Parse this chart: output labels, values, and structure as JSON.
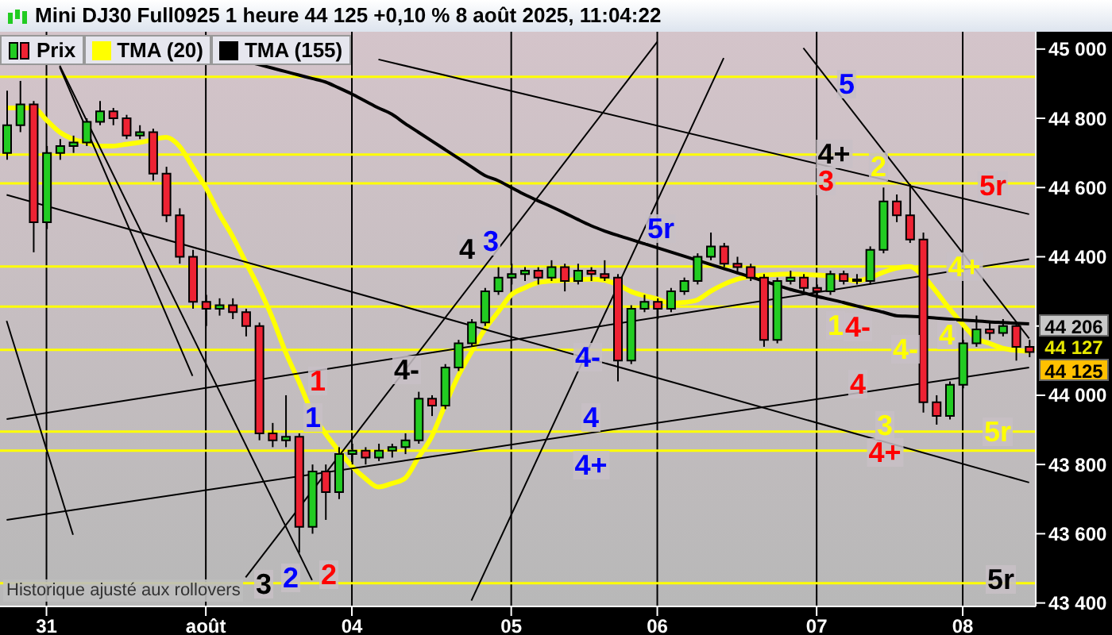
{
  "chart_data": {
    "type": "candlestick",
    "title": "Mini DJ30 Full0925 1 heure 44 125 +0,10 % 8 août 2025, 11:04:22",
    "categories": [
      null,
      null,
      null,
      "31",
      null,
      null,
      null,
      null,
      null,
      null,
      null,
      null,
      null,
      null,
      null,
      "août",
      null,
      null,
      null,
      null,
      null,
      null,
      null,
      null,
      null,
      null,
      "04",
      null,
      null,
      null,
      null,
      null,
      null,
      null,
      null,
      null,
      null,
      null,
      "05",
      null,
      null,
      null,
      null,
      null,
      null,
      null,
      null,
      null,
      null,
      "06",
      null,
      null,
      null,
      null,
      null,
      null,
      null,
      null,
      null,
      null,
      null,
      "07",
      null,
      null,
      null,
      null,
      null,
      null,
      null,
      null,
      null,
      null,
      "08",
      null,
      null,
      null,
      null,
      null
    ],
    "ylim": [
      43390,
      45050
    ],
    "yticks": [
      {
        "value": 43400,
        "label": "43 400"
      },
      {
        "value": 43600,
        "label": "43 600"
      },
      {
        "value": 43800,
        "label": "43 800"
      },
      {
        "value": 44000,
        "label": "44 000"
      },
      {
        "value": 44200,
        "label": null
      },
      {
        "value": 44400,
        "label": "44 400"
      },
      {
        "value": 44600,
        "label": "44 600"
      },
      {
        "value": 44800,
        "label": "44 800"
      },
      {
        "value": 45000,
        "label": "45 000"
      }
    ],
    "grid": "x",
    "legend": "top left",
    "series": [
      {
        "name": "Prix",
        "ohlc": [
          [
            44700,
            44880,
            44680,
            44780
          ],
          [
            44780,
            44908,
            44760,
            44840
          ],
          [
            44840,
            44850,
            44413,
            44500
          ],
          [
            44500,
            44720,
            44480,
            44700
          ],
          [
            44700,
            44740,
            44680,
            44720
          ],
          [
            44720,
            44750,
            44700,
            44730
          ],
          [
            44730,
            44800,
            44720,
            44790
          ],
          [
            44790,
            44850,
            44780,
            44820
          ],
          [
            44820,
            44830,
            44780,
            44800
          ],
          [
            44800,
            44810,
            44740,
            44750
          ],
          [
            44750,
            44780,
            44740,
            44760
          ],
          [
            44760,
            44770,
            44620,
            44640
          ],
          [
            44640,
            44660,
            44500,
            44520
          ],
          [
            44520,
            44540,
            44380,
            44400
          ],
          [
            44400,
            44420,
            44250,
            44270
          ],
          [
            44270,
            44290,
            44200,
            44250
          ],
          [
            44250,
            44280,
            44230,
            44260
          ],
          [
            44260,
            44280,
            44220,
            44240
          ],
          [
            44240,
            44250,
            44170,
            44200
          ],
          [
            44200,
            44210,
            43870,
            43890
          ],
          [
            43890,
            43920,
            43850,
            43870
          ],
          [
            43870,
            44000,
            43850,
            43880
          ],
          [
            43880,
            43890,
            43545,
            43620
          ],
          [
            43620,
            43800,
            43600,
            43780
          ],
          [
            43780,
            43800,
            43640,
            43720
          ],
          [
            43720,
            43850,
            43700,
            43830
          ],
          [
            43830,
            43860,
            43800,
            43840
          ],
          [
            43840,
            43850,
            43800,
            43820
          ],
          [
            43820,
            43860,
            43810,
            43840
          ],
          [
            43840,
            43860,
            43820,
            43850
          ],
          [
            43850,
            43890,
            43830,
            43870
          ],
          [
            43870,
            44010,
            43860,
            43990
          ],
          [
            43990,
            44000,
            43940,
            43970
          ],
          [
            43970,
            44090,
            43960,
            44080
          ],
          [
            44080,
            44160,
            44070,
            44150
          ],
          [
            44150,
            44220,
            44140,
            44210
          ],
          [
            44210,
            44310,
            44200,
            44300
          ],
          [
            44300,
            44370,
            44290,
            44340
          ],
          [
            44340,
            44380,
            44320,
            44350
          ],
          [
            44350,
            44370,
            44330,
            44360
          ],
          [
            44360,
            44370,
            44320,
            44340
          ],
          [
            44340,
            44390,
            44330,
            44370
          ],
          [
            44370,
            44380,
            44300,
            44330
          ],
          [
            44330,
            44380,
            44320,
            44360
          ],
          [
            44360,
            44370,
            44330,
            44350
          ],
          [
            44350,
            44390,
            44330,
            44340
          ],
          [
            44340,
            44350,
            44040,
            44100
          ],
          [
            44100,
            44260,
            44090,
            44250
          ],
          [
            44250,
            44290,
            44240,
            44270
          ],
          [
            44270,
            44280,
            44220,
            44250
          ],
          [
            44250,
            44310,
            44240,
            44300
          ],
          [
            44300,
            44340,
            44290,
            44330
          ],
          [
            44330,
            44410,
            44320,
            44400
          ],
          [
            44400,
            44470,
            44390,
            44430
          ],
          [
            44430,
            44440,
            44370,
            44380
          ],
          [
            44380,
            44400,
            44350,
            44370
          ],
          [
            44370,
            44380,
            44330,
            44340
          ],
          [
            44340,
            44350,
            44140,
            44160
          ],
          [
            44160,
            44340,
            44150,
            44330
          ],
          [
            44330,
            44360,
            44320,
            44340
          ],
          [
            44340,
            44350,
            44300,
            44310
          ],
          [
            44310,
            44320,
            44280,
            44300
          ],
          [
            44300,
            44360,
            44290,
            44350
          ],
          [
            44350,
            44360,
            44320,
            44330
          ],
          [
            44330,
            44350,
            44320,
            44330
          ],
          [
            44330,
            44430,
            44320,
            44420
          ],
          [
            44420,
            44600,
            44410,
            44560
          ],
          [
            44560,
            44580,
            44500,
            44520
          ],
          [
            44520,
            44610,
            44440,
            44450
          ],
          [
            44450,
            44470,
            43950,
            43980
          ],
          [
            43980,
            44000,
            43915,
            43940
          ],
          [
            43940,
            44040,
            43930,
            44030
          ],
          [
            44030,
            44160,
            44020,
            44150
          ],
          [
            44150,
            44230,
            44140,
            44190
          ],
          [
            44190,
            44210,
            44160,
            44180
          ],
          [
            44180,
            44220,
            44170,
            44200
          ],
          [
            44200,
            44210,
            44100,
            44140
          ],
          [
            44140,
            44160,
            44110,
            44125
          ]
        ]
      },
      {
        "type": "line",
        "name": "TMA (20)",
        "color": "#ffff00",
        "values": [
          44830,
          44830,
          44830,
          44795,
          44760,
          44740,
          44730,
          44720,
          44720,
          44725,
          44730,
          44738,
          44745,
          44720,
          44660,
          44600,
          44525,
          44460,
          44385,
          44310,
          44225,
          44125,
          44040,
          43950,
          43890,
          43840,
          43795,
          43760,
          43735,
          43745,
          43760,
          43820,
          43880,
          43970,
          44055,
          44125,
          44190,
          44240,
          44290,
          44310,
          44325,
          44330,
          44332,
          44334,
          44335,
          44332,
          44320,
          44300,
          44288,
          44278,
          44266,
          44268,
          44275,
          44300,
          44320,
          44335,
          44343,
          44347,
          44349,
          44350,
          44349,
          44347,
          44345,
          44337,
          44330,
          44340,
          44355,
          44367,
          44372,
          44345,
          44300,
          44250,
          44205,
          44165,
          44150,
          44136,
          44130,
          44127
        ]
      },
      {
        "type": "line",
        "name": "TMA (155)",
        "color": "#000000",
        "values": [
          null,
          null,
          null,
          null,
          null,
          null,
          null,
          null,
          null,
          null,
          null,
          null,
          null,
          null,
          null,
          null,
          null,
          44975,
          44965,
          44955,
          44945,
          44935,
          44925,
          44915,
          44905,
          44888,
          44870,
          44850,
          44830,
          44812,
          44785,
          44760,
          44735,
          44710,
          44685,
          44660,
          44635,
          44620,
          44600,
          44580,
          44562,
          44545,
          44527,
          44508,
          44490,
          44475,
          44462,
          44450,
          44438,
          44426,
          44414,
          44402,
          44390,
          44378,
          44366,
          44354,
          44342,
          44330,
          44318,
          44306,
          44296,
          44286,
          44277,
          44268,
          44258,
          44249,
          44240,
          44230,
          44228,
          44226,
          44223,
          44220,
          44217,
          44215,
          44212,
          44210,
          44208,
          44206
        ]
      },
      {
        "type": "line",
        "color": "#000000",
        "values": [
          44215,
          null,
          null,
          null,
          null,
          43597,
          null,
          null,
          null,
          null,
          null,
          null,
          null,
          null,
          null,
          null,
          null,
          null,
          null,
          null,
          null,
          null,
          null,
          null,
          null,
          null,
          null,
          null,
          null,
          null,
          null,
          null,
          null,
          null,
          null,
          null,
          null,
          null,
          null,
          null,
          null,
          null,
          null,
          null,
          null,
          null,
          null,
          null,
          null,
          null,
          null,
          null,
          null,
          null,
          null,
          null,
          null,
          null,
          null,
          null,
          null,
          null,
          null,
          null,
          null,
          null,
          null,
          null,
          null,
          null,
          null,
          null,
          null,
          null,
          null,
          null,
          null,
          null
        ]
      },
      {
        "type": "line",
        "color": "#000000",
        "values": [
          null,
          null,
          null,
          null,
          44948,
          null,
          null,
          null,
          null,
          null,
          null,
          null,
          null,
          null,
          44056,
          null,
          null,
          null,
          null,
          null,
          null,
          null,
          null,
          null,
          null,
          null,
          null,
          null,
          null,
          null,
          null,
          null,
          null,
          null,
          null,
          null,
          null,
          null,
          null,
          null,
          null,
          null,
          null,
          null,
          null,
          null,
          null,
          null,
          null,
          null,
          null,
          null,
          null,
          null,
          null,
          null,
          null,
          null,
          null,
          null,
          null,
          null,
          null,
          null,
          null,
          null,
          null,
          null,
          null,
          null,
          null,
          null,
          null,
          null,
          null,
          null,
          null,
          null
        ]
      },
      {
        "type": "line",
        "color": "#000000",
        "values": [
          null,
          null,
          null,
          null,
          44952,
          null,
          null,
          null,
          null,
          null,
          null,
          null,
          null,
          null,
          null,
          null,
          null,
          null,
          null,
          null,
          null,
          null,
          null,
          43466,
          null,
          null,
          null,
          null,
          null,
          null,
          null,
          null,
          null,
          null,
          null,
          null,
          null,
          null,
          null,
          null,
          null,
          null,
          null,
          null,
          null,
          null,
          null,
          null,
          null,
          null,
          null,
          null,
          null,
          null,
          null,
          null,
          null,
          null,
          null,
          null,
          null,
          null,
          null,
          null,
          null,
          null,
          null,
          null,
          null,
          null,
          null,
          null,
          null,
          null,
          null,
          null,
          null,
          null
        ]
      },
      {
        "type": "line",
        "color": "#000000",
        "values": [
          44579,
          null,
          null,
          null,
          null,
          null,
          null,
          null,
          null,
          null,
          null,
          null,
          null,
          null,
          null,
          null,
          null,
          null,
          null,
          null,
          null,
          null,
          null,
          null,
          null,
          null,
          null,
          null,
          null,
          null,
          null,
          null,
          null,
          null,
          null,
          null,
          null,
          null,
          null,
          null,
          null,
          null,
          null,
          null,
          null,
          null,
          null,
          null,
          null,
          null,
          null,
          null,
          null,
          null,
          null,
          null,
          null,
          null,
          null,
          null,
          null,
          null,
          null,
          null,
          null,
          null,
          null,
          null,
          null,
          null,
          null,
          null,
          null,
          null,
          null,
          null,
          null,
          43748
        ]
      },
      {
        "type": "line",
        "color": "#000000",
        "values": [
          43931,
          null,
          null,
          null,
          null,
          null,
          null,
          null,
          null,
          null,
          null,
          null,
          null,
          null,
          null,
          null,
          null,
          null,
          null,
          null,
          null,
          null,
          null,
          null,
          null,
          null,
          null,
          null,
          null,
          null,
          null,
          null,
          null,
          null,
          null,
          null,
          null,
          null,
          null,
          null,
          null,
          null,
          null,
          null,
          null,
          null,
          null,
          null,
          null,
          null,
          null,
          null,
          null,
          null,
          null,
          null,
          null,
          null,
          null,
          null,
          null,
          null,
          null,
          null,
          null,
          null,
          null,
          null,
          null,
          null,
          null,
          null,
          null,
          null,
          null,
          null,
          null,
          44393
        ]
      },
      {
        "type": "line",
        "color": "#000000",
        "values": [
          43640,
          null,
          null,
          null,
          null,
          null,
          null,
          null,
          null,
          null,
          null,
          null,
          null,
          null,
          null,
          null,
          null,
          null,
          null,
          null,
          null,
          null,
          null,
          null,
          null,
          null,
          null,
          null,
          null,
          null,
          null,
          null,
          null,
          null,
          null,
          null,
          null,
          null,
          null,
          null,
          null,
          null,
          null,
          null,
          null,
          null,
          null,
          null,
          null,
          null,
          null,
          null,
          null,
          null,
          null,
          null,
          null,
          null,
          null,
          null,
          null,
          null,
          null,
          null,
          null,
          null,
          null,
          null,
          null,
          null,
          null,
          null,
          null,
          null,
          null,
          null,
          null,
          44080
        ]
      },
      {
        "type": "line",
        "color": "#000000",
        "values": [
          null,
          null,
          null,
          null,
          null,
          null,
          null,
          null,
          null,
          null,
          null,
          null,
          null,
          null,
          null,
          null,
          null,
          null,
          null,
          null,
          null,
          null,
          null,
          null,
          null,
          null,
          null,
          null,
          44970,
          null,
          null,
          null,
          null,
          null,
          null,
          null,
          null,
          null,
          null,
          null,
          null,
          null,
          null,
          null,
          null,
          null,
          null,
          null,
          null,
          null,
          null,
          null,
          null,
          null,
          null,
          null,
          null,
          null,
          null,
          null,
          null,
          null,
          null,
          null,
          null,
          null,
          null,
          null,
          null,
          null,
          null,
          null,
          null,
          null,
          null,
          null,
          null,
          44523
        ]
      },
      {
        "type": "line",
        "color": "#000000",
        "values": [
          null,
          null,
          null,
          null,
          null,
          null,
          null,
          null,
          null,
          null,
          null,
          null,
          null,
          null,
          null,
          null,
          null,
          null,
          null,
          null,
          null,
          null,
          null,
          null,
          null,
          null,
          null,
          null,
          null,
          null,
          null,
          null,
          null,
          null,
          null,
          43407,
          null,
          null,
          null,
          null,
          null,
          null,
          null,
          null,
          null,
          null,
          null,
          null,
          null,
          null,
          null,
          null,
          null,
          null,
          44974,
          null,
          null,
          null,
          null,
          null,
          null,
          null,
          null,
          null,
          null,
          null,
          null,
          null,
          null,
          null,
          null,
          null,
          null,
          null,
          null,
          null,
          null,
          null
        ]
      },
      {
        "type": "line",
        "color": "#000000",
        "values": [
          null,
          null,
          null,
          null,
          null,
          null,
          null,
          null,
          null,
          null,
          null,
          null,
          null,
          null,
          null,
          null,
          null,
          null,
          43474,
          null,
          null,
          null,
          null,
          null,
          null,
          null,
          null,
          null,
          null,
          null,
          null,
          null,
          null,
          null,
          null,
          null,
          null,
          null,
          null,
          null,
          null,
          null,
          null,
          null,
          null,
          null,
          null,
          null,
          null,
          45021,
          null,
          null,
          null,
          null,
          null,
          null,
          null,
          null,
          null,
          null,
          null,
          null,
          null,
          null,
          null,
          null,
          null,
          null,
          null,
          null,
          null,
          null,
          null,
          null,
          null,
          null,
          null,
          null
        ]
      },
      {
        "type": "line",
        "color": "#000000",
        "values": [
          null,
          null,
          null,
          null,
          null,
          null,
          null,
          null,
          null,
          null,
          null,
          null,
          null,
          null,
          null,
          null,
          null,
          null,
          null,
          null,
          null,
          null,
          null,
          null,
          null,
          null,
          null,
          null,
          null,
          null,
          null,
          null,
          null,
          null,
          null,
          null,
          null,
          null,
          null,
          null,
          null,
          null,
          null,
          null,
          null,
          null,
          null,
          null,
          null,
          null,
          null,
          null,
          null,
          null,
          null,
          null,
          null,
          null,
          null,
          null,
          45003,
          null,
          null,
          null,
          null,
          null,
          null,
          null,
          null,
          null,
          null,
          null,
          null,
          null,
          null,
          null,
          null,
          44164
        ]
      }
    ],
    "ref_lines": [
      {
        "axis": "y",
        "value": 44920,
        "color": "#ffff00"
      },
      {
        "axis": "y",
        "value": 44695,
        "color": "#ffff00"
      },
      {
        "axis": "y",
        "value": 44612,
        "color": "#ffff00"
      },
      {
        "axis": "y",
        "value": 44372,
        "color": "#ffff00"
      },
      {
        "axis": "y",
        "value": 44256,
        "color": "#ffff00"
      },
      {
        "axis": "y",
        "value": 44131,
        "color": "#ffff00"
      },
      {
        "axis": "y",
        "value": 43895,
        "color": "#ffff00"
      },
      {
        "axis": "y",
        "value": 43840,
        "color": "#ffff00"
      },
      {
        "axis": "y",
        "value": 43457,
        "color": "#ffff00"
      }
    ],
    "annotations": [
      "Historique ajusté aux rollovers",
      "1",
      "1",
      "3",
      "2",
      "2",
      "4-",
      "4",
      "3",
      "4-",
      "4",
      "4+",
      "5r",
      "5",
      "4+",
      "3",
      "2",
      "5r",
      "4+",
      "1",
      "4-",
      "4",
      "4-",
      "4",
      "3",
      "4+",
      "5r",
      "5r",
      "44 206",
      "44 127",
      "44 125"
    ]
  }
}
